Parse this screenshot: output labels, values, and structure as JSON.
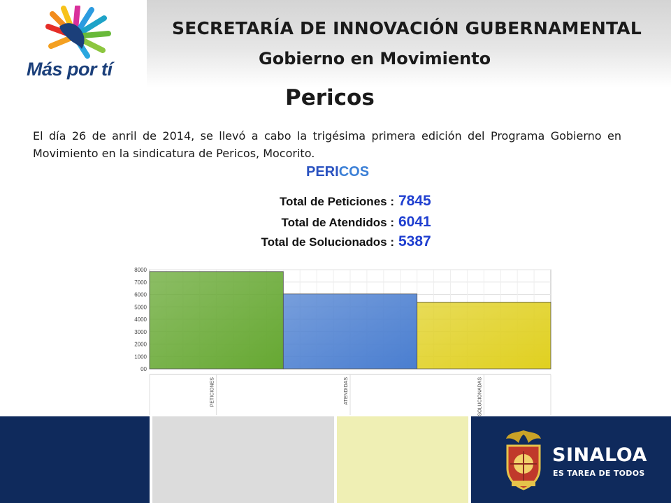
{
  "header": {
    "logo_text": "Más por tí",
    "title": "SECRETARÍA DE INNOVACIÓN GUBERNAMENTAL",
    "subtitle": "Gobierno en Movimiento"
  },
  "page": {
    "title": "Pericos",
    "intro": "El día 26 de anril de 2014, se llevó a cabo la trigésima primera edición del Programa Gobierno en Movimiento en la sindicatura de Pericos, Mocorito."
  },
  "chart_data": {
    "type": "bar",
    "title_main": "PERI",
    "title_rest": "COS",
    "summary": [
      {
        "label": "Total de Peticiones :",
        "value": "7845"
      },
      {
        "label": "Total de Atendidos :",
        "value": "6041"
      },
      {
        "label": "Total de Solucionados :",
        "value": "5387"
      }
    ],
    "categories": [
      "PETICIONES",
      "ATENDIDAS",
      "SOLUCIONADAS"
    ],
    "values": [
      7845,
      6041,
      5387
    ],
    "ylim": [
      0,
      8000
    ],
    "yticks": [
      "00",
      "1000",
      "2000",
      "3000",
      "4000",
      "5000",
      "6000",
      "7000",
      "8000"
    ],
    "colors": [
      "#66a832",
      "#4a7ed0",
      "#e0d020"
    ],
    "grid": true,
    "legend": "none"
  },
  "footer": {
    "brand_name": "SINALOA",
    "brand_tagline": "ES TAREA DE TODOS",
    "colors": [
      "#0f2a5c",
      "#dcdcdc",
      "#efefb4",
      "#0f2a5c"
    ]
  }
}
